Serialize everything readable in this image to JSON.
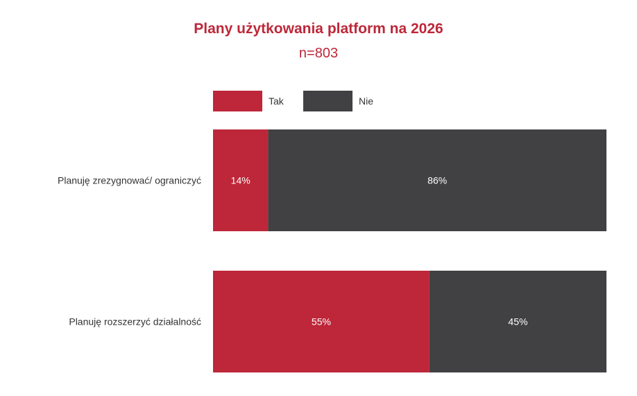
{
  "chart_data": {
    "type": "bar",
    "orientation": "horizontal",
    "stacked": true,
    "title": "Plany użytkowania platform na 2026",
    "subtitle": "n=803",
    "categories": [
      "Planuję zrezygnować/ ograniczyć",
      "Planuję rozszerzyć działalność"
    ],
    "series": [
      {
        "name": "Tak",
        "values": [
          14,
          55
        ],
        "labels": [
          "14%",
          "55%"
        ],
        "color": "#bd2739"
      },
      {
        "name": "Nie",
        "values": [
          86,
          45
        ],
        "labels": [
          "86%",
          "45%"
        ],
        "color": "#414042"
      }
    ],
    "xlim": [
      0,
      100
    ],
    "unit": "%",
    "grid": false,
    "legend_position": "top"
  }
}
